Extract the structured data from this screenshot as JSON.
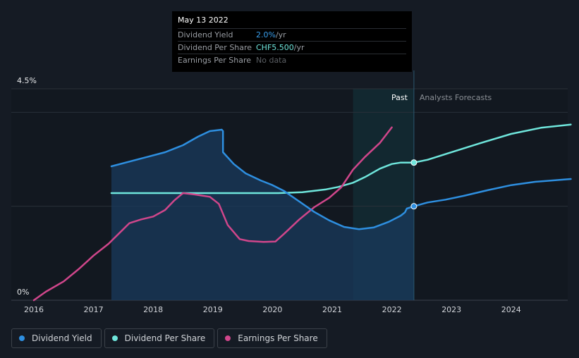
{
  "tooltip": {
    "date": "May 13 2022",
    "rows": [
      {
        "label": "Dividend Yield",
        "value": "2.0%",
        "unit": " /yr"
      },
      {
        "label": "Dividend Per Share",
        "value": "CHF5.500",
        "unit": " /yr"
      },
      {
        "label": "Earnings Per Share",
        "value": "No data",
        "unit": ""
      }
    ]
  },
  "legend": [
    {
      "label": "Dividend Yield",
      "color": "#2e8fe0"
    },
    {
      "label": "Dividend Per Share",
      "color": "#6fe6dc"
    },
    {
      "label": "Earnings Per Share",
      "color": "#d0468b"
    }
  ],
  "chart_data": {
    "type": "line",
    "x_ticks": [
      "2016",
      "2017",
      "2018",
      "2019",
      "2020",
      "2021",
      "2022",
      "2023",
      "2024"
    ],
    "y_ticks": [
      "0%",
      "4.5%"
    ],
    "ylim": [
      0,
      4.5
    ],
    "xlim": [
      2016,
      2025
    ],
    "region_labels": {
      "past": "Past",
      "forecast": "Analysts Forecasts"
    },
    "past_end": 2022.37,
    "highlight_start": 2021.35,
    "marker_x": 2022.37,
    "series": [
      {
        "name": "Dividend Yield",
        "color": "#2e8fe0",
        "points": [
          [
            2017.3,
            2.85
          ],
          [
            2017.6,
            2.95
          ],
          [
            2017.9,
            3.05
          ],
          [
            2018.2,
            3.15
          ],
          [
            2018.5,
            3.3
          ],
          [
            2018.75,
            3.48
          ],
          [
            2018.95,
            3.6
          ],
          [
            2019.15,
            3.63
          ],
          [
            2019.17,
            3.6
          ],
          [
            2019.17,
            3.15
          ],
          [
            2019.35,
            2.9
          ],
          [
            2019.55,
            2.7
          ],
          [
            2019.8,
            2.55
          ],
          [
            2020.0,
            2.45
          ],
          [
            2020.2,
            2.32
          ],
          [
            2020.45,
            2.1
          ],
          [
            2020.7,
            1.88
          ],
          [
            2020.95,
            1.7
          ],
          [
            2021.2,
            1.56
          ],
          [
            2021.45,
            1.51
          ],
          [
            2021.7,
            1.55
          ],
          [
            2021.95,
            1.67
          ],
          [
            2022.15,
            1.8
          ],
          [
            2022.22,
            1.87
          ],
          [
            2022.25,
            1.95
          ],
          [
            2022.37,
            2.0
          ],
          [
            2022.6,
            2.08
          ],
          [
            2022.9,
            2.14
          ],
          [
            2023.2,
            2.22
          ],
          [
            2023.6,
            2.34
          ],
          [
            2024.0,
            2.45
          ],
          [
            2024.4,
            2.52
          ],
          [
            2025.0,
            2.58
          ]
        ]
      },
      {
        "name": "Dividend Per Share",
        "color": "#6fe6dc",
        "points": [
          [
            2017.3,
            2.28
          ],
          [
            2020.1,
            2.28
          ],
          [
            2020.5,
            2.3
          ],
          [
            2020.9,
            2.36
          ],
          [
            2021.1,
            2.41
          ],
          [
            2021.35,
            2.5
          ],
          [
            2021.55,
            2.62
          ],
          [
            2021.8,
            2.8
          ],
          [
            2022.0,
            2.9
          ],
          [
            2022.15,
            2.93
          ],
          [
            2022.37,
            2.93
          ],
          [
            2022.6,
            2.99
          ],
          [
            2022.95,
            3.13
          ],
          [
            2023.5,
            3.35
          ],
          [
            2024.0,
            3.54
          ],
          [
            2024.5,
            3.67
          ],
          [
            2025.0,
            3.74
          ]
        ]
      },
      {
        "name": "Earnings Per Share",
        "color": "#d0468b",
        "points": [
          [
            2016.0,
            0.0
          ],
          [
            2016.2,
            0.18
          ],
          [
            2016.5,
            0.4
          ],
          [
            2016.75,
            0.66
          ],
          [
            2017.0,
            0.95
          ],
          [
            2017.25,
            1.2
          ],
          [
            2017.45,
            1.45
          ],
          [
            2017.6,
            1.64
          ],
          [
            2017.8,
            1.72
          ],
          [
            2018.0,
            1.78
          ],
          [
            2018.2,
            1.92
          ],
          [
            2018.35,
            2.12
          ],
          [
            2018.5,
            2.28
          ],
          [
            2018.7,
            2.25
          ],
          [
            2018.95,
            2.2
          ],
          [
            2019.1,
            2.05
          ],
          [
            2019.25,
            1.6
          ],
          [
            2019.45,
            1.3
          ],
          [
            2019.6,
            1.26
          ],
          [
            2019.85,
            1.24
          ],
          [
            2020.05,
            1.25
          ],
          [
            2020.2,
            1.42
          ],
          [
            2020.45,
            1.72
          ],
          [
            2020.7,
            1.98
          ],
          [
            2020.95,
            2.18
          ],
          [
            2021.15,
            2.4
          ],
          [
            2021.35,
            2.78
          ],
          [
            2021.55,
            3.05
          ],
          [
            2021.8,
            3.35
          ],
          [
            2022.0,
            3.68
          ]
        ]
      }
    ]
  }
}
